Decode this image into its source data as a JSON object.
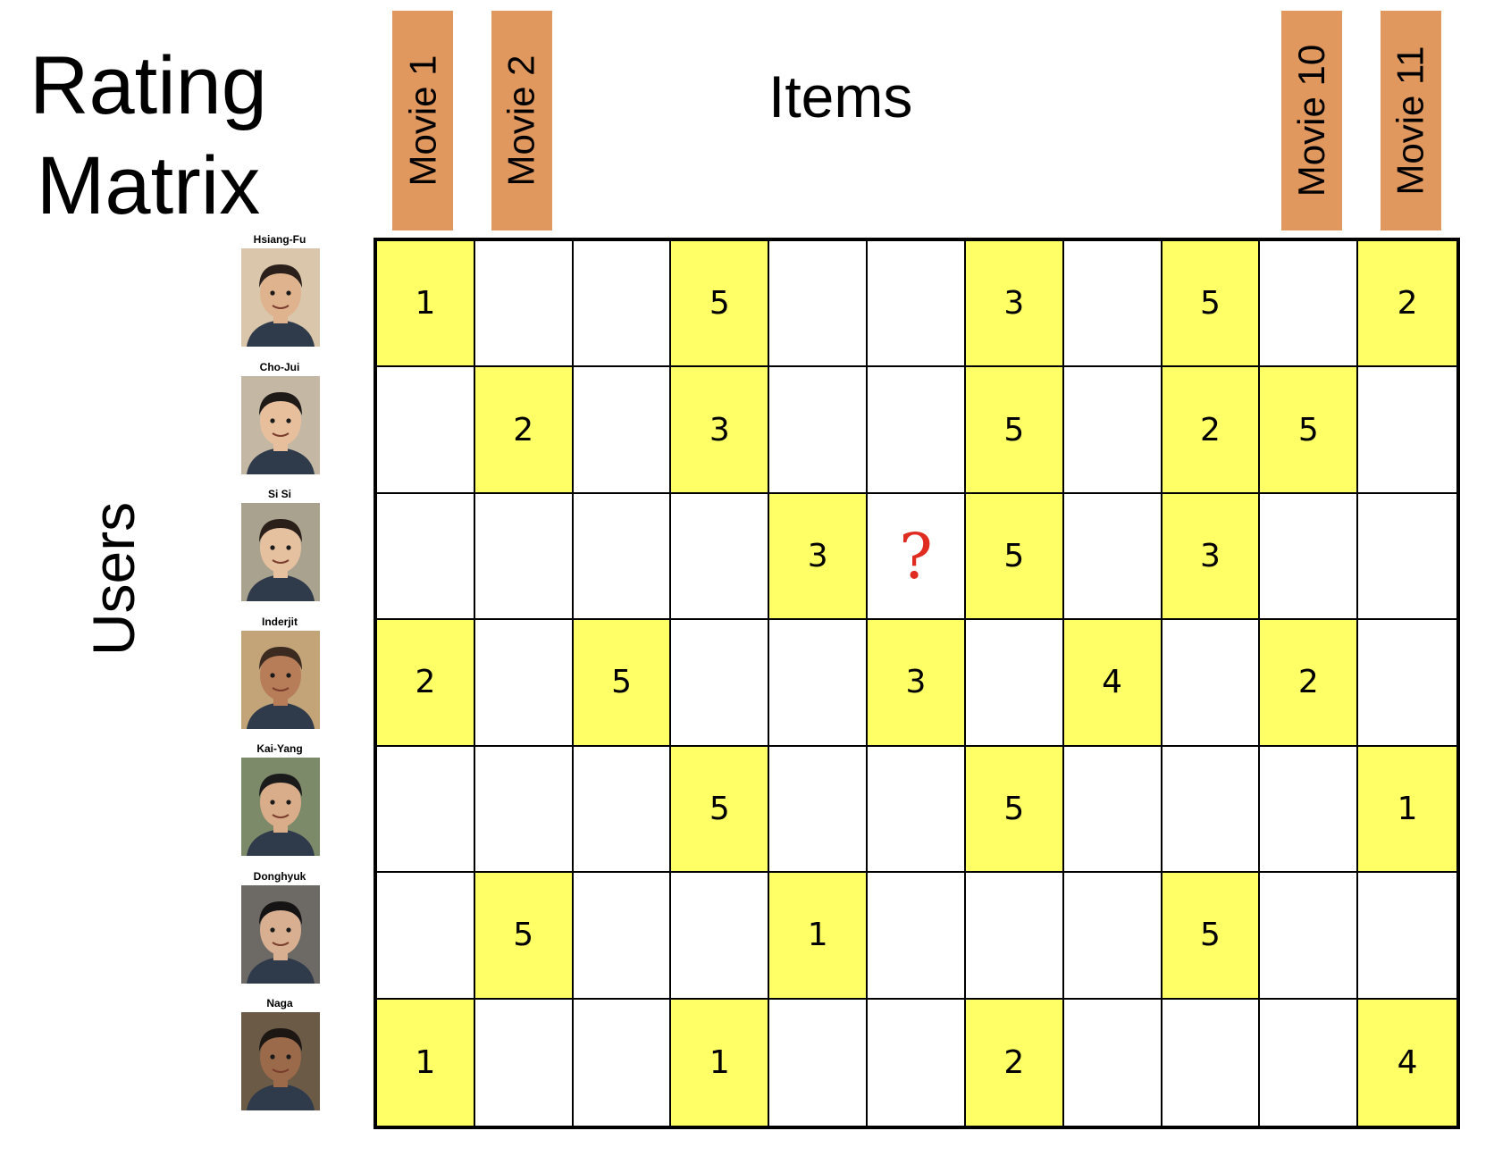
{
  "title": [
    "Rating",
    "Matrix"
  ],
  "items_label": "Items",
  "users_label": "Users",
  "movie_labels": [
    {
      "label": "Movie 1",
      "column": 1
    },
    {
      "label": "Movie 2",
      "column": 2
    },
    {
      "label": "Movie 10",
      "column": 10
    },
    {
      "label": "Movie 11",
      "column": 11
    }
  ],
  "users": [
    "Hsiang-Fu",
    "Cho-Jui",
    "Si Si",
    "Inderjit",
    "Kai-Yang",
    "Donghyuk",
    "Naga"
  ],
  "colors": {
    "movie_tag": "#E0985E",
    "rated_cell": "#FFFF66",
    "empty_cell": "#FFFFFF",
    "question_mark": "#E02B20",
    "grid_line": "#000000"
  },
  "matrix": {
    "rows": 7,
    "cols": 11,
    "ratings": [
      [
        "1",
        "",
        "",
        "5",
        "",
        "",
        "3",
        "",
        "5",
        "",
        "2"
      ],
      [
        "",
        "2",
        "",
        "3",
        "",
        "",
        "5",
        "",
        "2",
        "5",
        ""
      ],
      [
        "",
        "",
        "",
        "",
        "3",
        "?",
        "5",
        "",
        "3",
        "",
        ""
      ],
      [
        "2",
        "",
        "5",
        "",
        "",
        "3",
        "",
        "4",
        "",
        "2",
        ""
      ],
      [
        "",
        "",
        "",
        "5",
        "",
        "",
        "5",
        "",
        "",
        "",
        "1"
      ],
      [
        "",
        "5",
        "",
        "",
        "1",
        "",
        "",
        "",
        "5",
        "",
        ""
      ],
      [
        "1",
        "",
        "",
        "1",
        "",
        "",
        "2",
        "",
        "",
        "",
        "4"
      ]
    ]
  }
}
